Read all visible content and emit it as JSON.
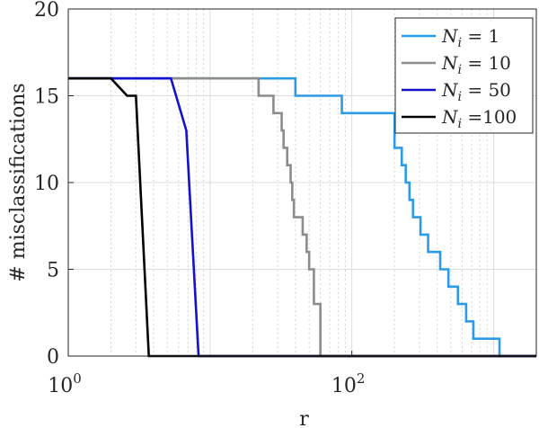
{
  "chart_data": {
    "type": "line",
    "title": "",
    "xlabel": "r",
    "ylabel": "# misclassifications",
    "xscale": "log",
    "xlim": [
      1,
      2000
    ],
    "ylim": [
      0,
      20
    ],
    "grid": true,
    "minor_grid": true,
    "line_shape": "step",
    "legend_position": "top-right",
    "xticks": [
      {
        "value": 1,
        "base": "10",
        "exp": "0"
      },
      {
        "value": 100,
        "base": "10",
        "exp": "2"
      }
    ],
    "yticks": [
      0,
      5,
      10,
      15,
      20
    ],
    "series": [
      {
        "name": "N_i = 1",
        "legend": {
          "var": "N",
          "sub": "i",
          "rest": " = 1"
        },
        "color": "#2b9be8",
        "points": [
          [
            1,
            16
          ],
          [
            40,
            16
          ],
          [
            40,
            15
          ],
          [
            85,
            15
          ],
          [
            85,
            14
          ],
          [
            200,
            14
          ],
          [
            200,
            12
          ],
          [
            225,
            12
          ],
          [
            225,
            11
          ],
          [
            240,
            11
          ],
          [
            240,
            10
          ],
          [
            255,
            10
          ],
          [
            255,
            9
          ],
          [
            270,
            9
          ],
          [
            270,
            8
          ],
          [
            305,
            8
          ],
          [
            305,
            7
          ],
          [
            345,
            7
          ],
          [
            345,
            6
          ],
          [
            420,
            6
          ],
          [
            420,
            5
          ],
          [
            480,
            5
          ],
          [
            480,
            4
          ],
          [
            560,
            4
          ],
          [
            560,
            3
          ],
          [
            640,
            3
          ],
          [
            640,
            2
          ],
          [
            720,
            2
          ],
          [
            720,
            1
          ],
          [
            1100,
            1
          ],
          [
            1100,
            0
          ],
          [
            2000,
            0
          ]
        ]
      },
      {
        "name": "N_i = 10",
        "legend": {
          "var": "N",
          "sub": "i",
          "rest": " = 10"
        },
        "color": "#8c8c8c",
        "points": [
          [
            1,
            16
          ],
          [
            22,
            16
          ],
          [
            22,
            15
          ],
          [
            28,
            15
          ],
          [
            28,
            14
          ],
          [
            32,
            14
          ],
          [
            32,
            13
          ],
          [
            33,
            13
          ],
          [
            33,
            12
          ],
          [
            35,
            12
          ],
          [
            35,
            11
          ],
          [
            37,
            11
          ],
          [
            37,
            10
          ],
          [
            38,
            10
          ],
          [
            38,
            9
          ],
          [
            39,
            9
          ],
          [
            39,
            8
          ],
          [
            45,
            8
          ],
          [
            45,
            7
          ],
          [
            48,
            7
          ],
          [
            48,
            6
          ],
          [
            50,
            6
          ],
          [
            50,
            5
          ],
          [
            54,
            5
          ],
          [
            54,
            3
          ],
          [
            60,
            3
          ],
          [
            60,
            0
          ],
          [
            2000,
            0
          ]
        ]
      },
      {
        "name": "N_i = 50",
        "legend": {
          "var": "N",
          "sub": "i",
          "rest": " = 50"
        },
        "color": "#1212d0",
        "points": [
          [
            1,
            16
          ],
          [
            5.3,
            16
          ],
          [
            5.3,
            16
          ],
          [
            6.8,
            13
          ],
          [
            6.8,
            13
          ],
          [
            8.3,
            0
          ],
          [
            2000,
            0
          ]
        ]
      },
      {
        "name": "N_i =100",
        "legend": {
          "var": "N",
          "sub": "i",
          "rest": " =100"
        },
        "color": "#000000",
        "points": [
          [
            1,
            16
          ],
          [
            2,
            16
          ],
          [
            2.6,
            15
          ],
          [
            3.0,
            15
          ],
          [
            3.7,
            0
          ],
          [
            2000,
            0
          ]
        ]
      }
    ]
  }
}
